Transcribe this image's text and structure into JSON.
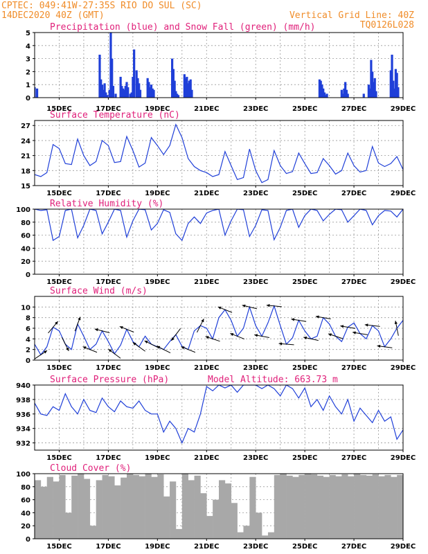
{
  "header": {
    "line1": "CPTEC:  049:41W-27:35S  RIO DO SUL (SC)",
    "line2": "14DEC2020 40Z (GMT)",
    "grid_note": "Vertical Grid Line: 40Z",
    "run_code": "TQ0126L028"
  },
  "x_axis": {
    "start": "14DEC2020 00Z",
    "end": "29DEC2020 00Z",
    "tick_labels": [
      "15DEC",
      "17DEC",
      "19DEC",
      "21DEC",
      "23DEC",
      "25DEC",
      "27DEC",
      "29DEC"
    ],
    "tick_days": [
      15,
      17,
      19,
      21,
      23,
      25,
      27,
      29
    ]
  },
  "chart_data": [
    {
      "id": "precip",
      "type": "bar",
      "title": "Precipitation (blue) and Snow Fall (green) (mm/h)",
      "ylim": [
        0,
        5
      ],
      "yticks": [
        0,
        1,
        2,
        3,
        4,
        5
      ],
      "colors": {
        "rain": "#1f3fd8",
        "snow": "#22aa22"
      },
      "series": [
        {
          "name": "Precipitation",
          "x_days": [
            14.0,
            14.1,
            16.65,
            16.7,
            16.75,
            16.8,
            16.85,
            16.9,
            16.95,
            17.05,
            17.1,
            17.15,
            17.2,
            17.3,
            17.5,
            17.55,
            17.6,
            17.65,
            17.7,
            17.75,
            17.8,
            17.9,
            17.95,
            18.0,
            18.05,
            18.15,
            18.2,
            18.25,
            18.3,
            18.6,
            18.65,
            18.7,
            18.75,
            18.8,
            18.85,
            19.6,
            19.65,
            19.7,
            19.75,
            19.8,
            19.85,
            20.1,
            20.15,
            20.2,
            20.25,
            20.3,
            20.35,
            20.4,
            25.6,
            25.65,
            25.7,
            25.75,
            25.8,
            25.85,
            25.9,
            26.5,
            26.55,
            26.6,
            26.65,
            26.7,
            26.75,
            27.4,
            27.6,
            27.65,
            27.7,
            27.75,
            27.8,
            27.85,
            27.9,
            28.5,
            28.55,
            28.6,
            28.65,
            28.7,
            28.75,
            28.8
          ],
          "values": [
            0.8,
            0.7,
            3.3,
            1.4,
            1.0,
            0.6,
            1.1,
            0.4,
            0.2,
            0.6,
            5.0,
            3.0,
            0.9,
            0.3,
            1.6,
            0.9,
            0.7,
            0.6,
            0.9,
            1.2,
            0.8,
            0.3,
            0.4,
            1.6,
            3.7,
            2.1,
            1.5,
            1.1,
            0.6,
            1.5,
            1.2,
            0.8,
            1.0,
            0.7,
            0.6,
            3.0,
            2.2,
            1.3,
            0.5,
            0.3,
            0.2,
            1.8,
            1.5,
            1.6,
            1.1,
            1.3,
            1.4,
            0.6,
            1.4,
            1.3,
            1.0,
            0.7,
            0.4,
            0.2,
            0.3,
            0.6,
            0.3,
            0.7,
            1.2,
            0.6,
            0.3,
            0.3,
            1.0,
            0.7,
            2.9,
            2.0,
            1.2,
            1.5,
            0.5,
            2.1,
            3.3,
            1.3,
            0.7,
            2.2,
            1.9,
            0.8
          ]
        }
      ]
    },
    {
      "id": "temperature",
      "type": "line",
      "title": "Surface Temperature (nC)",
      "ylim": [
        15,
        28
      ],
      "yticks": [
        15,
        18,
        21,
        24,
        27
      ],
      "color": "#1f3fd8",
      "series": [
        {
          "name": "Temperature",
          "x_days": [
            14.0,
            14.25,
            14.5,
            14.75,
            15.0,
            15.25,
            15.5,
            15.75,
            16.0,
            16.25,
            16.5,
            16.75,
            17.0,
            17.25,
            17.5,
            17.75,
            18.0,
            18.25,
            18.5,
            18.75,
            19.0,
            19.25,
            19.5,
            19.75,
            20.0,
            20.25,
            20.5,
            20.75,
            21.0,
            21.25,
            21.5,
            21.75,
            22.0,
            22.25,
            22.5,
            22.75,
            23.0,
            23.25,
            23.5,
            23.75,
            24.0,
            24.25,
            24.5,
            24.75,
            25.0,
            25.25,
            25.5,
            25.75,
            26.0,
            26.25,
            26.5,
            26.75,
            27.0,
            27.25,
            27.5,
            27.75,
            28.0,
            28.25,
            28.5,
            28.75,
            29.0
          ],
          "values": [
            17.2,
            16.8,
            17.6,
            23.2,
            22.4,
            19.4,
            19.2,
            24.3,
            21.0,
            19.0,
            19.8,
            24.0,
            23.0,
            19.6,
            19.8,
            24.8,
            22.0,
            18.7,
            19.5,
            24.6,
            23.0,
            21.2,
            23.0,
            27.2,
            24.6,
            20.4,
            18.8,
            18.0,
            17.6,
            16.8,
            17.2,
            21.8,
            19.0,
            16.2,
            16.6,
            22.3,
            18.0,
            15.6,
            16.2,
            22.0,
            19.0,
            17.4,
            17.8,
            21.5,
            19.4,
            17.4,
            17.6,
            20.4,
            19.0,
            17.3,
            18.0,
            21.5,
            19.0,
            17.7,
            18.0,
            22.8,
            19.5,
            18.8,
            19.4,
            20.8,
            18.2
          ]
        }
      ]
    },
    {
      "id": "humidity",
      "type": "line",
      "title": "Relative Humidity (%)",
      "ylim": [
        0,
        100
      ],
      "yticks": [
        0,
        20,
        40,
        60,
        80,
        100
      ],
      "color": "#1f3fd8",
      "series": [
        {
          "name": "Relative Humidity",
          "x_days": [
            14.0,
            14.25,
            14.5,
            14.75,
            15.0,
            15.25,
            15.5,
            15.75,
            16.0,
            16.25,
            16.5,
            16.75,
            17.0,
            17.25,
            17.5,
            17.75,
            18.0,
            18.25,
            18.5,
            18.75,
            19.0,
            19.25,
            19.5,
            19.75,
            20.0,
            20.25,
            20.5,
            20.75,
            21.0,
            21.25,
            21.5,
            21.75,
            22.0,
            22.25,
            22.5,
            22.75,
            23.0,
            23.25,
            23.5,
            23.75,
            24.0,
            24.25,
            24.5,
            24.75,
            25.0,
            25.25,
            25.5,
            25.75,
            26.0,
            26.25,
            26.5,
            26.75,
            27.0,
            27.25,
            27.5,
            27.75,
            28.0,
            28.25,
            28.5,
            28.75,
            29.0
          ],
          "values": [
            100,
            98,
            99,
            52,
            58,
            98,
            100,
            56,
            75,
            100,
            98,
            62,
            80,
            100,
            98,
            57,
            82,
            100,
            99,
            68,
            78,
            99,
            95,
            62,
            52,
            78,
            88,
            78,
            94,
            98,
            100,
            60,
            82,
            100,
            99,
            58,
            75,
            99,
            98,
            53,
            72,
            98,
            100,
            72,
            90,
            100,
            98,
            82,
            92,
            100,
            99,
            80,
            90,
            100,
            98,
            76,
            90,
            98,
            97,
            88,
            100
          ]
        }
      ]
    },
    {
      "id": "wind",
      "type": "line",
      "title": "Surface Wind (m/s)",
      "ylim": [
        0,
        12
      ],
      "yticks": [
        0,
        2,
        4,
        6,
        8,
        10
      ],
      "color": "#1f3fd8",
      "series": [
        {
          "name": "Wind speed",
          "x_days": [
            14.0,
            14.25,
            14.5,
            14.75,
            15.0,
            15.25,
            15.5,
            15.75,
            16.0,
            16.25,
            16.5,
            16.75,
            17.0,
            17.25,
            17.5,
            17.75,
            18.0,
            18.25,
            18.5,
            18.75,
            19.0,
            19.25,
            19.5,
            19.75,
            20.0,
            20.25,
            20.5,
            20.75,
            21.0,
            21.25,
            21.5,
            21.75,
            22.0,
            22.25,
            22.5,
            22.75,
            23.0,
            23.25,
            23.5,
            23.75,
            24.0,
            24.25,
            24.5,
            24.75,
            25.0,
            25.25,
            25.5,
            25.75,
            26.0,
            26.25,
            26.5,
            26.75,
            27.0,
            27.25,
            27.5,
            27.75,
            28.0,
            28.25,
            28.5,
            28.75,
            29.0
          ],
          "values": [
            3.0,
            1.0,
            2.5,
            6.2,
            5.5,
            3.0,
            2.0,
            6.8,
            4.5,
            2.0,
            3.0,
            5.5,
            3.5,
            1.2,
            2.8,
            5.8,
            3.5,
            2.5,
            4.5,
            3.0,
            2.5,
            2.0,
            3.5,
            4.8,
            2.6,
            2.0,
            5.5,
            6.5,
            6.0,
            4.0,
            8.0,
            9.5,
            7.5,
            4.5,
            6.0,
            10.0,
            6.5,
            4.5,
            7.0,
            10.2,
            6.5,
            3.0,
            4.2,
            7.5,
            5.5,
            4.0,
            4.5,
            8.0,
            6.8,
            4.5,
            3.5,
            6.2,
            7.0,
            5.0,
            4.0,
            6.5,
            5.5,
            2.5,
            4.0,
            6.0,
            7.5
          ]
        }
      ],
      "arrows": {
        "x_days": [
          14.25,
          14.75,
          15.25,
          15.75,
          16.25,
          16.75,
          17.25,
          17.75,
          18.25,
          18.75,
          19.25,
          19.75,
          20.25,
          20.75,
          21.25,
          21.75,
          22.25,
          22.75,
          23.25,
          23.75,
          24.25,
          24.75,
          25.25,
          25.75,
          26.25,
          26.75,
          27.25,
          27.75,
          28.25,
          28.75
        ],
        "u": [
          1.5,
          1.0,
          0.5,
          0.3,
          -1.0,
          -1.2,
          -0.8,
          -1.0,
          -0.7,
          -1.0,
          -0.8,
          -0.6,
          -0.5,
          0.5,
          -1.5,
          -2.0,
          -2.5,
          -2.5,
          -2.2,
          -3.0,
          -2.6,
          -2.5,
          -2.8,
          -3.0,
          -2.4,
          -3.0,
          -2.5,
          -2.6,
          -1.5,
          -0.3
        ],
        "v": [
          1.0,
          1.2,
          -1.0,
          0.8,
          0.4,
          0.3,
          0.6,
          0.4,
          0.5,
          0.5,
          0.4,
          -0.8,
          0.2,
          1.0,
          0.5,
          0.8,
          1.0,
          0.6,
          0.4,
          0.3,
          0.2,
          0.4,
          0.6,
          0.5,
          0.8,
          0.5,
          0.4,
          0.3,
          0.2,
          1.5
        ],
        "color": "#000000"
      }
    },
    {
      "id": "pressure",
      "type": "line",
      "title": "Surface Pressure (hPa)",
      "annotation": "Model Altitude: 663.73 m",
      "ylim": [
        931,
        940
      ],
      "yticks": [
        932,
        934,
        936,
        938,
        940
      ],
      "color": "#1f3fd8",
      "series": [
        {
          "name": "Surface Pressure",
          "x_days": [
            14.0,
            14.25,
            14.5,
            14.75,
            15.0,
            15.25,
            15.5,
            15.75,
            16.0,
            16.25,
            16.5,
            16.75,
            17.0,
            17.25,
            17.5,
            17.75,
            18.0,
            18.25,
            18.5,
            18.75,
            19.0,
            19.25,
            19.5,
            19.75,
            20.0,
            20.25,
            20.5,
            20.75,
            21.0,
            21.25,
            21.5,
            21.75,
            22.0,
            22.25,
            22.5,
            22.75,
            23.0,
            23.25,
            23.5,
            23.75,
            24.0,
            24.25,
            24.5,
            24.75,
            25.0,
            25.25,
            25.5,
            25.75,
            26.0,
            26.25,
            26.5,
            26.75,
            27.0,
            27.25,
            27.5,
            27.75,
            28.0,
            28.25,
            28.5,
            28.75,
            29.0
          ],
          "values": [
            937.5,
            936.0,
            935.8,
            937.0,
            936.5,
            938.8,
            937.0,
            936.0,
            938.0,
            936.5,
            936.2,
            938.2,
            937.0,
            936.3,
            937.8,
            937.0,
            936.8,
            937.8,
            936.5,
            936.0,
            936.0,
            933.5,
            935.0,
            934.0,
            932.0,
            934.0,
            933.5,
            936.0,
            939.8,
            939.2,
            940.0,
            939.6,
            940.0,
            939.0,
            940.0,
            940.0,
            940.0,
            939.5,
            940.0,
            939.5,
            938.5,
            940.0,
            939.5,
            938.2,
            939.6,
            937.0,
            938.0,
            936.5,
            938.5,
            937.0,
            936.0,
            938.0,
            935.0,
            936.8,
            935.8,
            934.8,
            936.5,
            935.0,
            935.6,
            932.5,
            933.8
          ]
        }
      ]
    },
    {
      "id": "cloud",
      "type": "area",
      "title": "Cloud Cover (%)",
      "ylim": [
        0,
        100
      ],
      "yticks": [
        0,
        20,
        40,
        60,
        80,
        100
      ],
      "color": "#a8a8a8",
      "series": [
        {
          "name": "Cloud Cover",
          "x_days": [
            14.0,
            14.25,
            14.5,
            14.75,
            15.0,
            15.25,
            15.5,
            15.75,
            16.0,
            16.25,
            16.5,
            16.75,
            17.0,
            17.25,
            17.5,
            17.75,
            18.0,
            18.25,
            18.5,
            18.75,
            19.0,
            19.25,
            19.5,
            19.75,
            20.0,
            20.25,
            20.5,
            20.75,
            21.0,
            21.25,
            21.5,
            21.75,
            22.0,
            22.25,
            22.5,
            22.75,
            23.0,
            23.25,
            23.5,
            23.75,
            24.0,
            24.25,
            24.5,
            24.75,
            25.0,
            25.25,
            25.5,
            25.75,
            26.0,
            26.25,
            26.5,
            26.75,
            27.0,
            27.25,
            27.5,
            27.75,
            28.0,
            28.25,
            28.5,
            28.75,
            29.0
          ],
          "values": [
            90,
            80,
            95,
            88,
            98,
            40,
            97,
            100,
            92,
            20,
            90,
            98,
            96,
            82,
            94,
            100,
            98,
            96,
            100,
            95,
            99,
            65,
            88,
            15,
            100,
            90,
            97,
            70,
            35,
            60,
            90,
            85,
            55,
            10,
            20,
            95,
            40,
            5,
            10,
            98,
            100,
            97,
            95,
            98,
            100,
            99,
            97,
            95,
            98,
            96,
            99,
            96,
            100,
            98,
            97,
            99,
            96,
            98,
            95,
            98,
            97
          ]
        }
      ]
    }
  ]
}
